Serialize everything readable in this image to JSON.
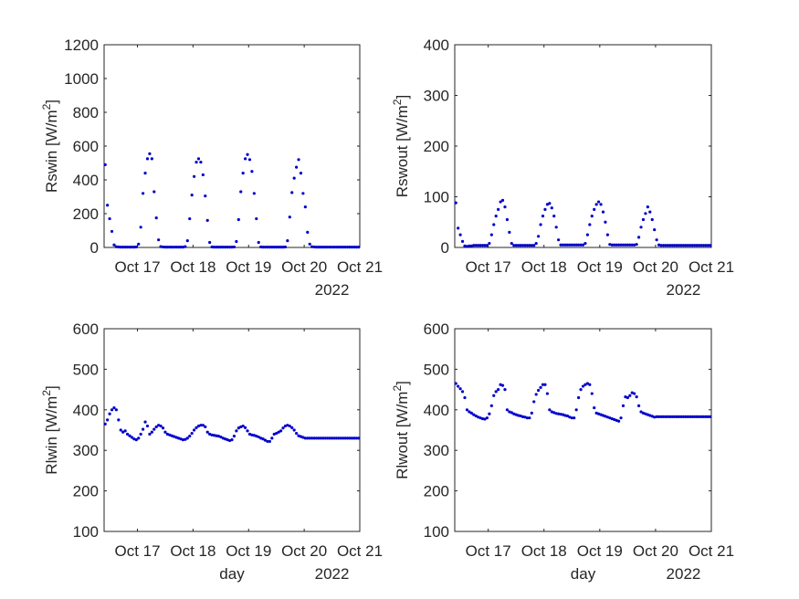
{
  "colors": {
    "marker": "#0000cc",
    "axis": "#262626",
    "background": "#ffffff"
  },
  "chart_data": [
    {
      "type": "scatter",
      "ylabel": "Rswin [W/m",
      "ylabel_sup": "2",
      "ylabel_close": "]",
      "xlabel": "",
      "ylim": [
        0,
        1200
      ],
      "yticks": [
        "0",
        "200",
        "400",
        "600",
        "800",
        "1000",
        "1200"
      ],
      "xticks": [
        "Oct 17",
        "Oct 18",
        "Oct 19",
        "Oct 20",
        "Oct 21"
      ],
      "year_label": "2022",
      "x_unit": "days since Oct 17 00:00",
      "xlim": [
        -0.6,
        4.0
      ],
      "series": [
        {
          "x": [
            -0.58,
            -0.54,
            -0.5,
            -0.46,
            -0.42,
            -0.38,
            -0.34,
            -0.3,
            -0.26,
            -0.22,
            -0.18,
            -0.14,
            -0.1,
            -0.06,
            -0.02,
            0.02,
            0.06,
            0.1,
            0.14,
            0.18,
            0.22,
            0.26,
            0.3,
            0.34,
            0.38,
            0.42,
            0.46,
            0.5,
            0.54,
            0.58,
            0.62,
            0.66,
            0.7,
            0.74,
            0.78,
            0.82,
            0.86,
            0.9,
            0.94,
            0.98,
            1.02,
            1.06,
            1.1,
            1.14,
            1.18,
            1.22,
            1.26,
            1.3,
            1.34,
            1.38,
            1.42,
            1.46,
            1.5,
            1.54,
            1.58,
            1.62,
            1.66,
            1.7,
            1.74,
            1.78,
            1.82,
            1.86,
            1.9,
            1.94,
            1.98,
            2.02,
            2.06,
            2.1,
            2.14,
            2.18,
            2.22,
            2.26,
            2.3,
            2.34,
            2.38,
            2.42,
            2.46,
            2.5,
            2.54,
            2.58,
            2.62,
            2.66,
            2.7,
            2.74,
            2.78,
            2.82,
            2.86,
            2.9,
            2.94,
            2.98,
            3.02,
            3.06,
            3.1,
            3.14,
            3.18,
            3.22,
            3.26,
            3.3,
            3.34,
            3.38,
            3.42,
            3.46,
            3.5,
            3.54,
            3.58,
            3.62,
            3.66,
            3.7,
            3.74,
            3.78,
            3.82,
            3.86,
            3.9,
            3.94,
            3.98
          ],
          "y": [
            490,
            250,
            170,
            95,
            15,
            4,
            3,
            2,
            2,
            2,
            2,
            2,
            2,
            2,
            3,
            20,
            120,
            320,
            440,
            525,
            555,
            525,
            330,
            175,
            45,
            5,
            3,
            2,
            2,
            2,
            2,
            2,
            2,
            2,
            2,
            2,
            5,
            40,
            170,
            310,
            420,
            505,
            525,
            505,
            430,
            305,
            160,
            30,
            3,
            2,
            2,
            2,
            2,
            2,
            2,
            2,
            2,
            2,
            3,
            35,
            165,
            330,
            440,
            525,
            550,
            520,
            450,
            320,
            170,
            30,
            3,
            2,
            2,
            2,
            2,
            2,
            2,
            2,
            2,
            2,
            2,
            3,
            40,
            180,
            325,
            410,
            475,
            520,
            440,
            320,
            240,
            90,
            20,
            4,
            3,
            2,
            2,
            2,
            2,
            2,
            2,
            2,
            2,
            2,
            2,
            2,
            2,
            2,
            2,
            2,
            2,
            2,
            2,
            2,
            2
          ]
        }
      ]
    },
    {
      "type": "scatter",
      "ylabel": "Rswout [W/m",
      "ylabel_sup": "2",
      "ylabel_close": "]",
      "xlabel": "",
      "ylim": [
        0,
        400
      ],
      "yticks": [
        "0",
        "100",
        "200",
        "300",
        "400"
      ],
      "xticks": [
        "Oct 17",
        "Oct 18",
        "Oct 19",
        "Oct 20",
        "Oct 21"
      ],
      "year_label": "2022",
      "x_unit": "days since Oct 17 00:00",
      "xlim": [
        -0.6,
        4.0
      ],
      "series": [
        {
          "x": [
            -0.58,
            -0.54,
            -0.5,
            -0.46,
            -0.42,
            -0.38,
            -0.34,
            -0.3,
            -0.26,
            -0.22,
            -0.18,
            -0.14,
            -0.1,
            -0.06,
            -0.02,
            0.02,
            0.06,
            0.1,
            0.14,
            0.18,
            0.22,
            0.26,
            0.3,
            0.34,
            0.38,
            0.42,
            0.46,
            0.5,
            0.54,
            0.58,
            0.62,
            0.66,
            0.7,
            0.74,
            0.78,
            0.82,
            0.86,
            0.9,
            0.94,
            0.98,
            1.02,
            1.06,
            1.1,
            1.14,
            1.18,
            1.22,
            1.26,
            1.3,
            1.34,
            1.38,
            1.42,
            1.46,
            1.5,
            1.54,
            1.58,
            1.62,
            1.66,
            1.7,
            1.74,
            1.78,
            1.82,
            1.86,
            1.9,
            1.94,
            1.98,
            2.02,
            2.06,
            2.1,
            2.14,
            2.18,
            2.22,
            2.26,
            2.3,
            2.34,
            2.38,
            2.42,
            2.46,
            2.5,
            2.54,
            2.58,
            2.62,
            2.66,
            2.7,
            2.74,
            2.78,
            2.82,
            2.86,
            2.9,
            2.94,
            2.98,
            3.02,
            3.06,
            3.1,
            3.14,
            3.18,
            3.22,
            3.26,
            3.3,
            3.34,
            3.38,
            3.42,
            3.46,
            3.5,
            3.54,
            3.58,
            3.62,
            3.66,
            3.7,
            3.74,
            3.78,
            3.82,
            3.86,
            3.9,
            3.94,
            3.98
          ],
          "y": [
            88,
            38,
            25,
            12,
            3,
            2,
            3,
            3,
            4,
            4,
            4,
            4,
            4,
            4,
            4,
            8,
            25,
            45,
            62,
            75,
            90,
            93,
            80,
            55,
            30,
            8,
            4,
            4,
            4,
            4,
            4,
            4,
            4,
            4,
            4,
            4,
            8,
            22,
            45,
            62,
            75,
            85,
            87,
            78,
            62,
            40,
            15,
            5,
            5,
            5,
            5,
            5,
            5,
            5,
            5,
            5,
            5,
            5,
            8,
            25,
            45,
            62,
            75,
            85,
            90,
            85,
            70,
            50,
            25,
            6,
            5,
            5,
            5,
            5,
            5,
            5,
            5,
            5,
            5,
            5,
            5,
            6,
            20,
            40,
            55,
            67,
            80,
            70,
            55,
            35,
            15,
            5,
            4,
            4,
            4,
            4,
            4,
            4,
            4,
            4,
            4,
            4,
            4,
            4,
            4,
            4,
            4,
            4,
            4,
            4,
            4,
            4,
            4,
            4,
            4
          ]
        }
      ]
    },
    {
      "type": "scatter",
      "ylabel": "Rlwin [W/m",
      "ylabel_sup": "2",
      "ylabel_close": "]",
      "xlabel": "day",
      "ylim": [
        100,
        600
      ],
      "yticks": [
        "100",
        "200",
        "300",
        "400",
        "500",
        "600"
      ],
      "xticks": [
        "Oct 17",
        "Oct 18",
        "Oct 19",
        "Oct 20",
        "Oct 21"
      ],
      "year_label": "2022",
      "x_unit": "days since Oct 17 00:00",
      "xlim": [
        -0.6,
        4.0
      ],
      "series": [
        {
          "x": [
            -0.58,
            -0.54,
            -0.5,
            -0.46,
            -0.42,
            -0.38,
            -0.34,
            -0.3,
            -0.26,
            -0.22,
            -0.18,
            -0.14,
            -0.1,
            -0.06,
            -0.02,
            0.02,
            0.06,
            0.1,
            0.14,
            0.18,
            0.22,
            0.26,
            0.3,
            0.34,
            0.38,
            0.42,
            0.46,
            0.5,
            0.54,
            0.58,
            0.62,
            0.66,
            0.7,
            0.74,
            0.78,
            0.82,
            0.86,
            0.9,
            0.94,
            0.98,
            1.02,
            1.06,
            1.1,
            1.14,
            1.18,
            1.22,
            1.26,
            1.3,
            1.34,
            1.38,
            1.42,
            1.46,
            1.5,
            1.54,
            1.58,
            1.62,
            1.66,
            1.7,
            1.74,
            1.78,
            1.82,
            1.86,
            1.9,
            1.94,
            1.98,
            2.02,
            2.06,
            2.1,
            2.14,
            2.18,
            2.22,
            2.26,
            2.3,
            2.34,
            2.38,
            2.42,
            2.46,
            2.5,
            2.54,
            2.58,
            2.62,
            2.66,
            2.7,
            2.74,
            2.78,
            2.82,
            2.86,
            2.9,
            2.94,
            2.98,
            3.02,
            3.06,
            3.1,
            3.14,
            3.18,
            3.22,
            3.26,
            3.3,
            3.34,
            3.38,
            3.42,
            3.46,
            3.5,
            3.54,
            3.58,
            3.62,
            3.66,
            3.7,
            3.74,
            3.78,
            3.82,
            3.86,
            3.9,
            3.94,
            3.98
          ],
          "y": [
            365,
            375,
            390,
            400,
            405,
            400,
            375,
            350,
            345,
            348,
            340,
            336,
            332,
            328,
            326,
            330,
            340,
            352,
            370,
            360,
            340,
            345,
            352,
            358,
            362,
            360,
            355,
            345,
            340,
            338,
            336,
            334,
            332,
            330,
            328,
            326,
            327,
            330,
            335,
            342,
            350,
            356,
            360,
            362,
            362,
            358,
            345,
            340,
            338,
            337,
            336,
            335,
            333,
            330,
            328,
            326,
            324,
            326,
            335,
            348,
            355,
            358,
            360,
            356,
            348,
            340,
            338,
            337,
            335,
            333,
            330,
            328,
            325,
            322,
            322,
            330,
            340,
            342,
            345,
            348,
            355,
            360,
            362,
            360,
            356,
            350,
            342,
            336,
            334,
            332,
            330,
            330,
            330,
            330,
            330,
            330,
            330,
            330,
            330,
            330,
            330,
            330,
            330,
            330,
            330,
            330,
            330,
            330,
            330,
            330,
            330,
            330,
            330,
            330,
            330
          ]
        }
      ]
    },
    {
      "type": "scatter",
      "ylabel": "Rlwout [W/m",
      "ylabel_sup": "2",
      "ylabel_close": "]",
      "xlabel": "day",
      "ylim": [
        100,
        600
      ],
      "yticks": [
        "100",
        "200",
        "300",
        "400",
        "500",
        "600"
      ],
      "xticks": [
        "Oct 17",
        "Oct 18",
        "Oct 19",
        "Oct 20",
        "Oct 21"
      ],
      "year_label": "2022",
      "x_unit": "days since Oct 17 00:00",
      "xlim": [
        -0.6,
        4.0
      ],
      "series": [
        {
          "x": [
            -0.58,
            -0.54,
            -0.5,
            -0.46,
            -0.42,
            -0.38,
            -0.34,
            -0.3,
            -0.26,
            -0.22,
            -0.18,
            -0.14,
            -0.1,
            -0.06,
            -0.02,
            0.02,
            0.06,
            0.1,
            0.14,
            0.18,
            0.22,
            0.26,
            0.3,
            0.34,
            0.38,
            0.42,
            0.46,
            0.5,
            0.54,
            0.58,
            0.62,
            0.66,
            0.7,
            0.74,
            0.78,
            0.82,
            0.86,
            0.9,
            0.94,
            0.98,
            1.02,
            1.06,
            1.1,
            1.14,
            1.18,
            1.22,
            1.26,
            1.3,
            1.34,
            1.38,
            1.42,
            1.46,
            1.5,
            1.54,
            1.58,
            1.62,
            1.66,
            1.7,
            1.74,
            1.78,
            1.82,
            1.86,
            1.9,
            1.94,
            1.98,
            2.02,
            2.06,
            2.1,
            2.14,
            2.18,
            2.22,
            2.26,
            2.3,
            2.34,
            2.38,
            2.42,
            2.46,
            2.5,
            2.54,
            2.58,
            2.62,
            2.66,
            2.7,
            2.74,
            2.78,
            2.82,
            2.86,
            2.9,
            2.94,
            2.98,
            3.02,
            3.06,
            3.1,
            3.14,
            3.18,
            3.22,
            3.26,
            3.3,
            3.34,
            3.38,
            3.42,
            3.46,
            3.5,
            3.54,
            3.58,
            3.62,
            3.66,
            3.7,
            3.74,
            3.78,
            3.82,
            3.86,
            3.9,
            3.94,
            3.98
          ],
          "y": [
            465,
            458,
            452,
            445,
            430,
            400,
            395,
            392,
            388,
            385,
            382,
            380,
            378,
            377,
            380,
            390,
            410,
            435,
            445,
            450,
            462,
            460,
            450,
            400,
            395,
            393,
            390,
            388,
            386,
            385,
            383,
            382,
            380,
            380,
            392,
            420,
            438,
            448,
            455,
            462,
            462,
            440,
            400,
            395,
            393,
            391,
            390,
            389,
            388,
            386,
            385,
            382,
            380,
            380,
            400,
            430,
            450,
            458,
            462,
            465,
            462,
            440,
            405,
            392,
            390,
            388,
            386,
            384,
            382,
            380,
            378,
            376,
            374,
            372,
            380,
            410,
            432,
            430,
            435,
            442,
            440,
            432,
            410,
            395,
            392,
            390,
            388,
            386,
            384,
            382,
            383,
            383,
            383,
            383,
            383,
            383,
            383,
            383,
            383,
            383,
            383,
            383,
            383,
            383,
            383,
            383,
            383,
            383,
            383,
            383,
            383,
            383,
            383,
            383,
            383
          ]
        }
      ]
    }
  ]
}
